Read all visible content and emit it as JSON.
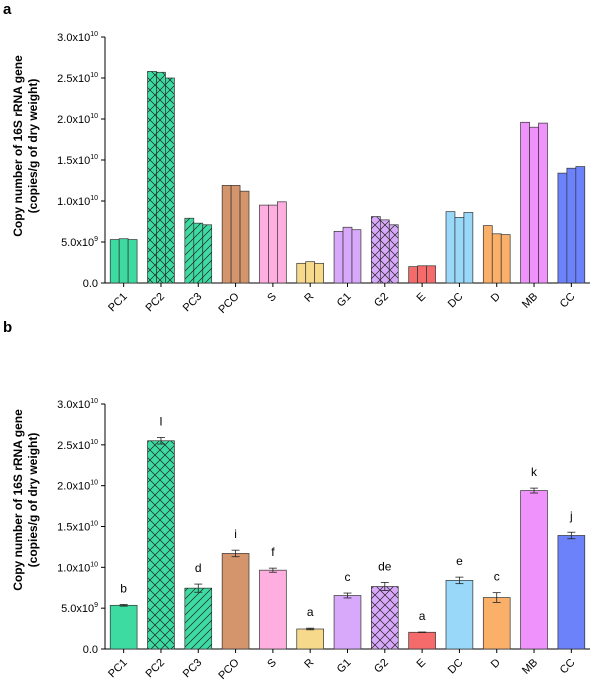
{
  "chart_data": [
    {
      "panel": "a",
      "type": "bar",
      "ylabel": "Copy number of 16S rRNA gene",
      "ylabel2": "(copies/g of dry weight)",
      "ylim": [
        0,
        30000000000
      ],
      "yticks": [
        {
          "value": 0,
          "base": "0.0",
          "exp": ""
        },
        {
          "value": 5000000000,
          "base": "5.0x10",
          "exp": "9"
        },
        {
          "value": 10000000000,
          "base": "1.0x10",
          "exp": "10"
        },
        {
          "value": 15000000000,
          "base": "1.5x10",
          "exp": "10"
        },
        {
          "value": 20000000000,
          "base": "2.0x10",
          "exp": "10"
        },
        {
          "value": 25000000000,
          "base": "2.5x10",
          "exp": "10"
        },
        {
          "value": 30000000000,
          "base": "3.0x10",
          "exp": "10"
        }
      ],
      "categories": [
        "PC1",
        "PC2",
        "PC3",
        "PCO",
        "S",
        "R",
        "G1",
        "G2",
        "E",
        "DC",
        "D",
        "MB",
        "CC"
      ],
      "replicates": [
        [
          5300000000.0,
          5400000000.0,
          5300000000.0
        ],
        [
          25800000000.0,
          25700000000.0,
          25000000000.0
        ],
        [
          7900000000.0,
          7300000000.0,
          7100000000.0
        ],
        [
          11900000000.0,
          11900000000.0,
          11200000000.0
        ],
        [
          9500000000.0,
          9500000000.0,
          9900000000.0
        ],
        [
          2400000000.0,
          2600000000.0,
          2400000000.0
        ],
        [
          6300000000.0,
          6800000000.0,
          6500000000.0
        ],
        [
          8100000000.0,
          7700000000.0,
          7100000000.0
        ],
        [
          2000000000.0,
          2100000000.0,
          2100000000.0
        ],
        [
          8700000000.0,
          8000000000.0,
          8600000000.0
        ],
        [
          7000000000.0,
          6000000000.0,
          5900000000.0
        ],
        [
          19600000000.0,
          19000000000.0,
          19500000000.0
        ],
        [
          13400000000.0,
          14000000000.0,
          14200000000.0
        ]
      ]
    },
    {
      "panel": "b",
      "type": "bar",
      "ylabel": "Copy number of 16S rRNA gene",
      "ylabel2": "(copies/g of dry weight)",
      "ylim": [
        0,
        30000000000
      ],
      "yticks": [
        {
          "value": 0,
          "base": "0.0",
          "exp": ""
        },
        {
          "value": 5000000000,
          "base": "5.0x10",
          "exp": "9"
        },
        {
          "value": 10000000000,
          "base": "1.0x10",
          "exp": "10"
        },
        {
          "value": 15000000000,
          "base": "1.5x10",
          "exp": "10"
        },
        {
          "value": 20000000000,
          "base": "2.0x10",
          "exp": "10"
        },
        {
          "value": 25000000000,
          "base": "2.5x10",
          "exp": "10"
        },
        {
          "value": 30000000000,
          "base": "3.0x10",
          "exp": "10"
        }
      ],
      "categories": [
        "PC1",
        "PC2",
        "PC3",
        "PCO",
        "S",
        "R",
        "G1",
        "G2",
        "E",
        "DC",
        "D",
        "MB",
        "CC"
      ],
      "values": [
        5350000000.0,
        25500000000.0,
        7450000000.0,
        11700000000.0,
        9650000000.0,
        2450000000.0,
        6550000000.0,
        7650000000.0,
        2050000000.0,
        8400000000.0,
        6300000000.0,
        19400000000.0,
        13900000000.0
      ],
      "errors": [
        100000000.0,
        400000000.0,
        500000000.0,
        400000000.0,
        250000000.0,
        100000000.0,
        300000000.0,
        500000000.0,
        30000000.0,
        400000000.0,
        600000000.0,
        300000000.0,
        400000000.0
      ],
      "significance": [
        "b",
        "l",
        "d",
        "i",
        "f",
        "a",
        "c",
        "de",
        "a",
        "e",
        "c",
        "k",
        "j"
      ]
    }
  ],
  "colors": {
    "PC1": "#3ddba1",
    "PC2": "#3ddba1",
    "PC3": "#3ddba1",
    "PCO": "#d5956c",
    "S": "#ffaee0",
    "R": "#f6d98a",
    "G1": "#d8a8fb",
    "G2": "#d8a8fb",
    "E": "#f56a6a",
    "DC": "#9ad8fa",
    "D": "#fbb06a",
    "MB": "#ef92fb",
    "CC": "#6b82fb"
  },
  "patterns": {
    "PC2": "crosshatch",
    "PC3": "diagonal",
    "G2": "crosshatch"
  }
}
